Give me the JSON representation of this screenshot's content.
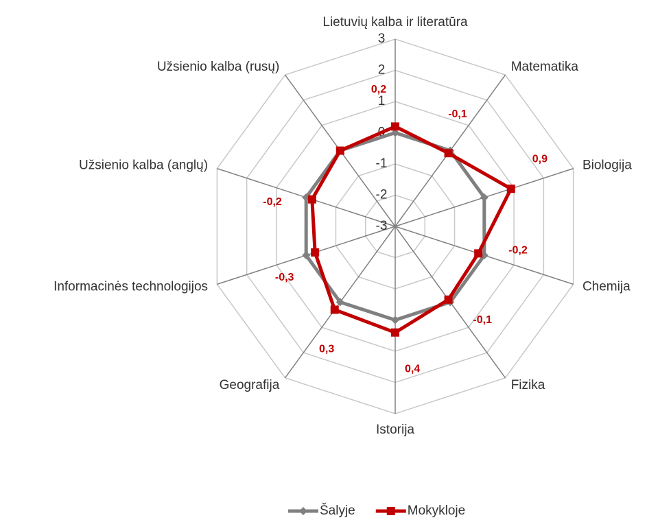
{
  "chart_data": {
    "type": "radar",
    "categories": [
      "Lietuvių kalba ir literatūra",
      "Matematika",
      "Biologija",
      "Chemija",
      "Fizika",
      "Istorija",
      "Geografija",
      "Informacinės technologijos",
      "Užsienio kalba (anglų)",
      "Užsienio kalba (rusų)"
    ],
    "ylim": [
      -3,
      3
    ],
    "yticks": [
      -3,
      -2,
      -1,
      0,
      1,
      2,
      3
    ],
    "grid": true,
    "legend": "bottom",
    "series": [
      {
        "name": "Šalyje",
        "color": "#808080",
        "marker": "diamond",
        "values": [
          0,
          0,
          0,
          0,
          0,
          0,
          0,
          0,
          0,
          0
        ]
      },
      {
        "name": "Mokykloje",
        "color": "#c00000",
        "marker": "square",
        "values": [
          0.2,
          -0.1,
          0.9,
          -0.2,
          -0.1,
          0.4,
          0.3,
          -0.3,
          -0.2,
          0
        ],
        "value_labels": [
          "0,2",
          "-0,1",
          "0,9",
          "-0,2",
          "-0,1",
          "0,4",
          "0,3",
          "-0,3",
          "-0,2",
          null
        ]
      }
    ]
  }
}
